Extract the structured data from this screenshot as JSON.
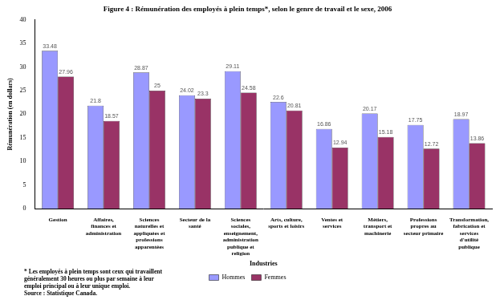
{
  "chart_data": {
    "type": "bar",
    "title": "Figure 4 : Rémunération des employés à plein temps*, selon le genre de travail et le sexe, 2006",
    "y_label": "Rémunération (en dollars)",
    "x_label": "Industries",
    "categories": [
      "Gestion",
      "Affaires, finances et administration",
      "Sciences naturelles et appliquées et professions apparentées",
      "Secteur de la santé",
      "Sciences sociales, enseignement, administration publique et religion",
      "Arts, culture, sports et loisirs",
      "Ventes et services",
      "Métiers, transport et machinerie",
      "Professions propres au secteur primaire",
      "Transformation, fabrication et services d'utilité publique"
    ],
    "series": [
      {
        "name": "Hommes",
        "color": "#9999ff",
        "values": [
          33.48,
          21.8,
          28.87,
          24.02,
          29.11,
          22.6,
          16.86,
          20.17,
          17.75,
          18.97
        ]
      },
      {
        "name": "Femmes",
        "color": "#993366",
        "values": [
          27.96,
          18.57,
          25,
          23.3,
          24.58,
          20.81,
          12.94,
          15.18,
          12.72,
          13.86
        ]
      }
    ],
    "ylim": [
      0,
      40
    ],
    "yticks": [
      0,
      5,
      10,
      15,
      20,
      25,
      30,
      35,
      40
    ],
    "grid": false,
    "legend": "bottom",
    "data_labels": true,
    "annotations": [
      "* Les employés à plein temps sont ceux qui travaillent généralement 30 heures ou plus par semaine à leur emploi principal ou à leur unique emploi.",
      "Source : Statistique Canada."
    ]
  }
}
